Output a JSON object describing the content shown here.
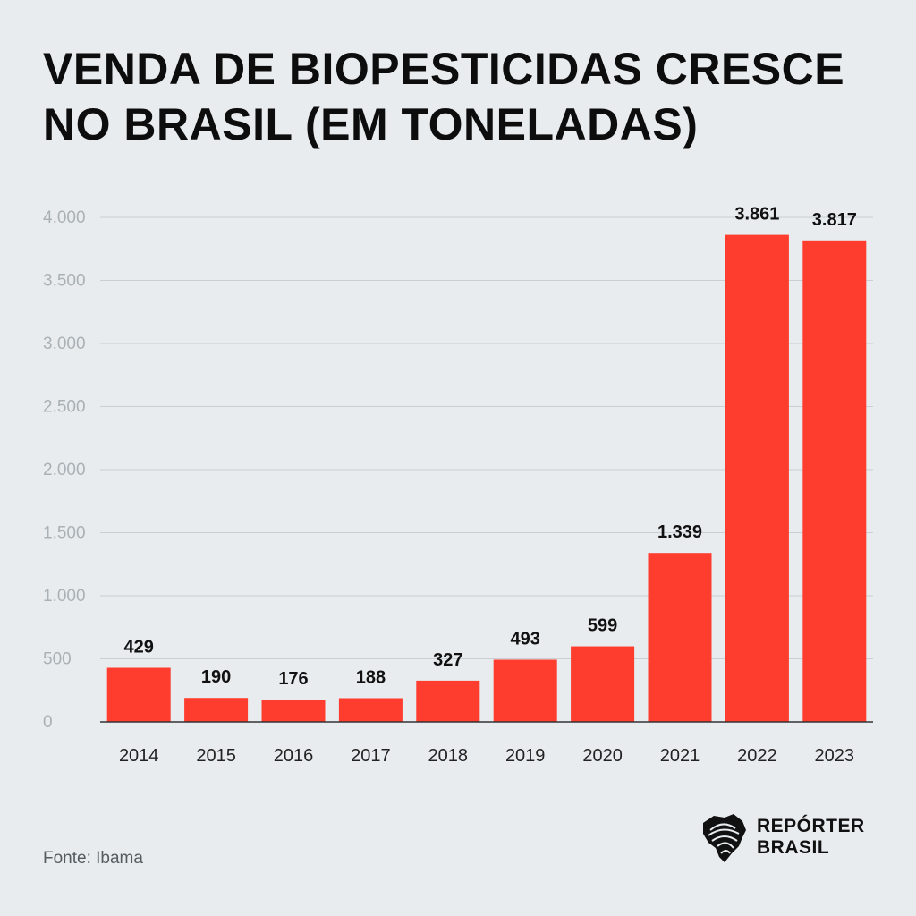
{
  "chart_data": {
    "type": "bar",
    "title_lines": [
      "VENDA DE BIOPESTICIDAS CRESCE",
      "NO BRASIL (EM TONELADAS)"
    ],
    "categories": [
      "2014",
      "2015",
      "2016",
      "2017",
      "2018",
      "2019",
      "2020",
      "2021",
      "2022",
      "2023"
    ],
    "values": [
      429,
      190,
      176,
      188,
      327,
      493,
      599,
      1339,
      3861,
      3817
    ],
    "value_labels": [
      "429",
      "190",
      "176",
      "188",
      "327",
      "493",
      "599",
      "1.339",
      "3.861",
      "3.817"
    ],
    "ylim": [
      0,
      4000
    ],
    "yticks": [
      0,
      500,
      1000,
      1500,
      2000,
      2500,
      3000,
      3500,
      4000
    ],
    "ytick_labels": [
      "0",
      "500",
      "1.000",
      "1.500",
      "2.000",
      "2.500",
      "3.000",
      "3.500",
      "4.000"
    ],
    "xlabel": "",
    "ylabel": "",
    "grid": true,
    "bar_color": "#ff3d2e"
  },
  "source": "Fonte: Ibama",
  "logo": {
    "line1": "REPÓRTER",
    "line2": "BRASIL"
  }
}
